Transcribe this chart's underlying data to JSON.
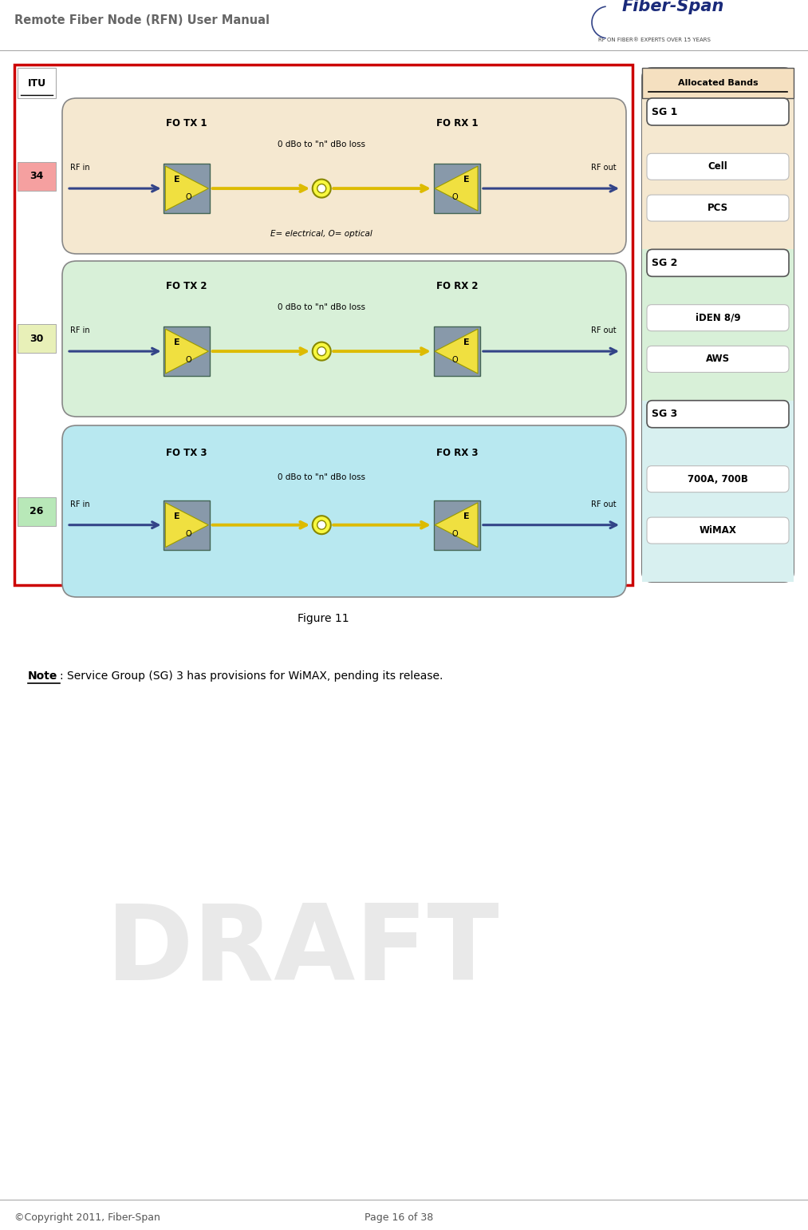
{
  "title": "Remote Fiber Node (RFN) User Manual",
  "figure_label": "Figure 11",
  "note_underlined": "Note",
  "note_rest": ": Service Group (SG) 3 has provisions for WiMAX, pending its release.",
  "footer_left": "©Copyright 2011, Fiber-Span",
  "footer_right": "Page 16 of 38",
  "sg_rows": [
    {
      "id": 1,
      "itu_label": "34",
      "fo_tx": "FO TX 1",
      "fo_rx": "FO RX 1",
      "bg_color": "#f5e8d0",
      "itu_color": "#f5a0a0",
      "bands": [
        "Cell",
        "PCS"
      ],
      "sg_label": "SG 1",
      "bands_bg": "#f5e8d0",
      "has_note": true
    },
    {
      "id": 2,
      "itu_label": "30",
      "fo_tx": "FO TX 2",
      "fo_rx": "FO RX 2",
      "bg_color": "#d8f0d8",
      "itu_color": "#e8f0b8",
      "bands": [
        "iDEN 8/9",
        "AWS"
      ],
      "sg_label": "SG 2",
      "bands_bg": "#d8f0d8",
      "has_note": false
    },
    {
      "id": 3,
      "itu_label": "26",
      "fo_tx": "FO TX 3",
      "fo_rx": "FO RX 3",
      "bg_color": "#b8e8f0",
      "itu_color": "#b8e8b8",
      "bands": [
        "700A, 700B",
        "WiMAX"
      ],
      "sg_label": "SG 3",
      "bands_bg": "#d8f0f0",
      "has_note": false
    }
  ],
  "outer_border_color": "#cc0000",
  "draft_color": "#c8c8c8",
  "draft_alpha": 0.4
}
